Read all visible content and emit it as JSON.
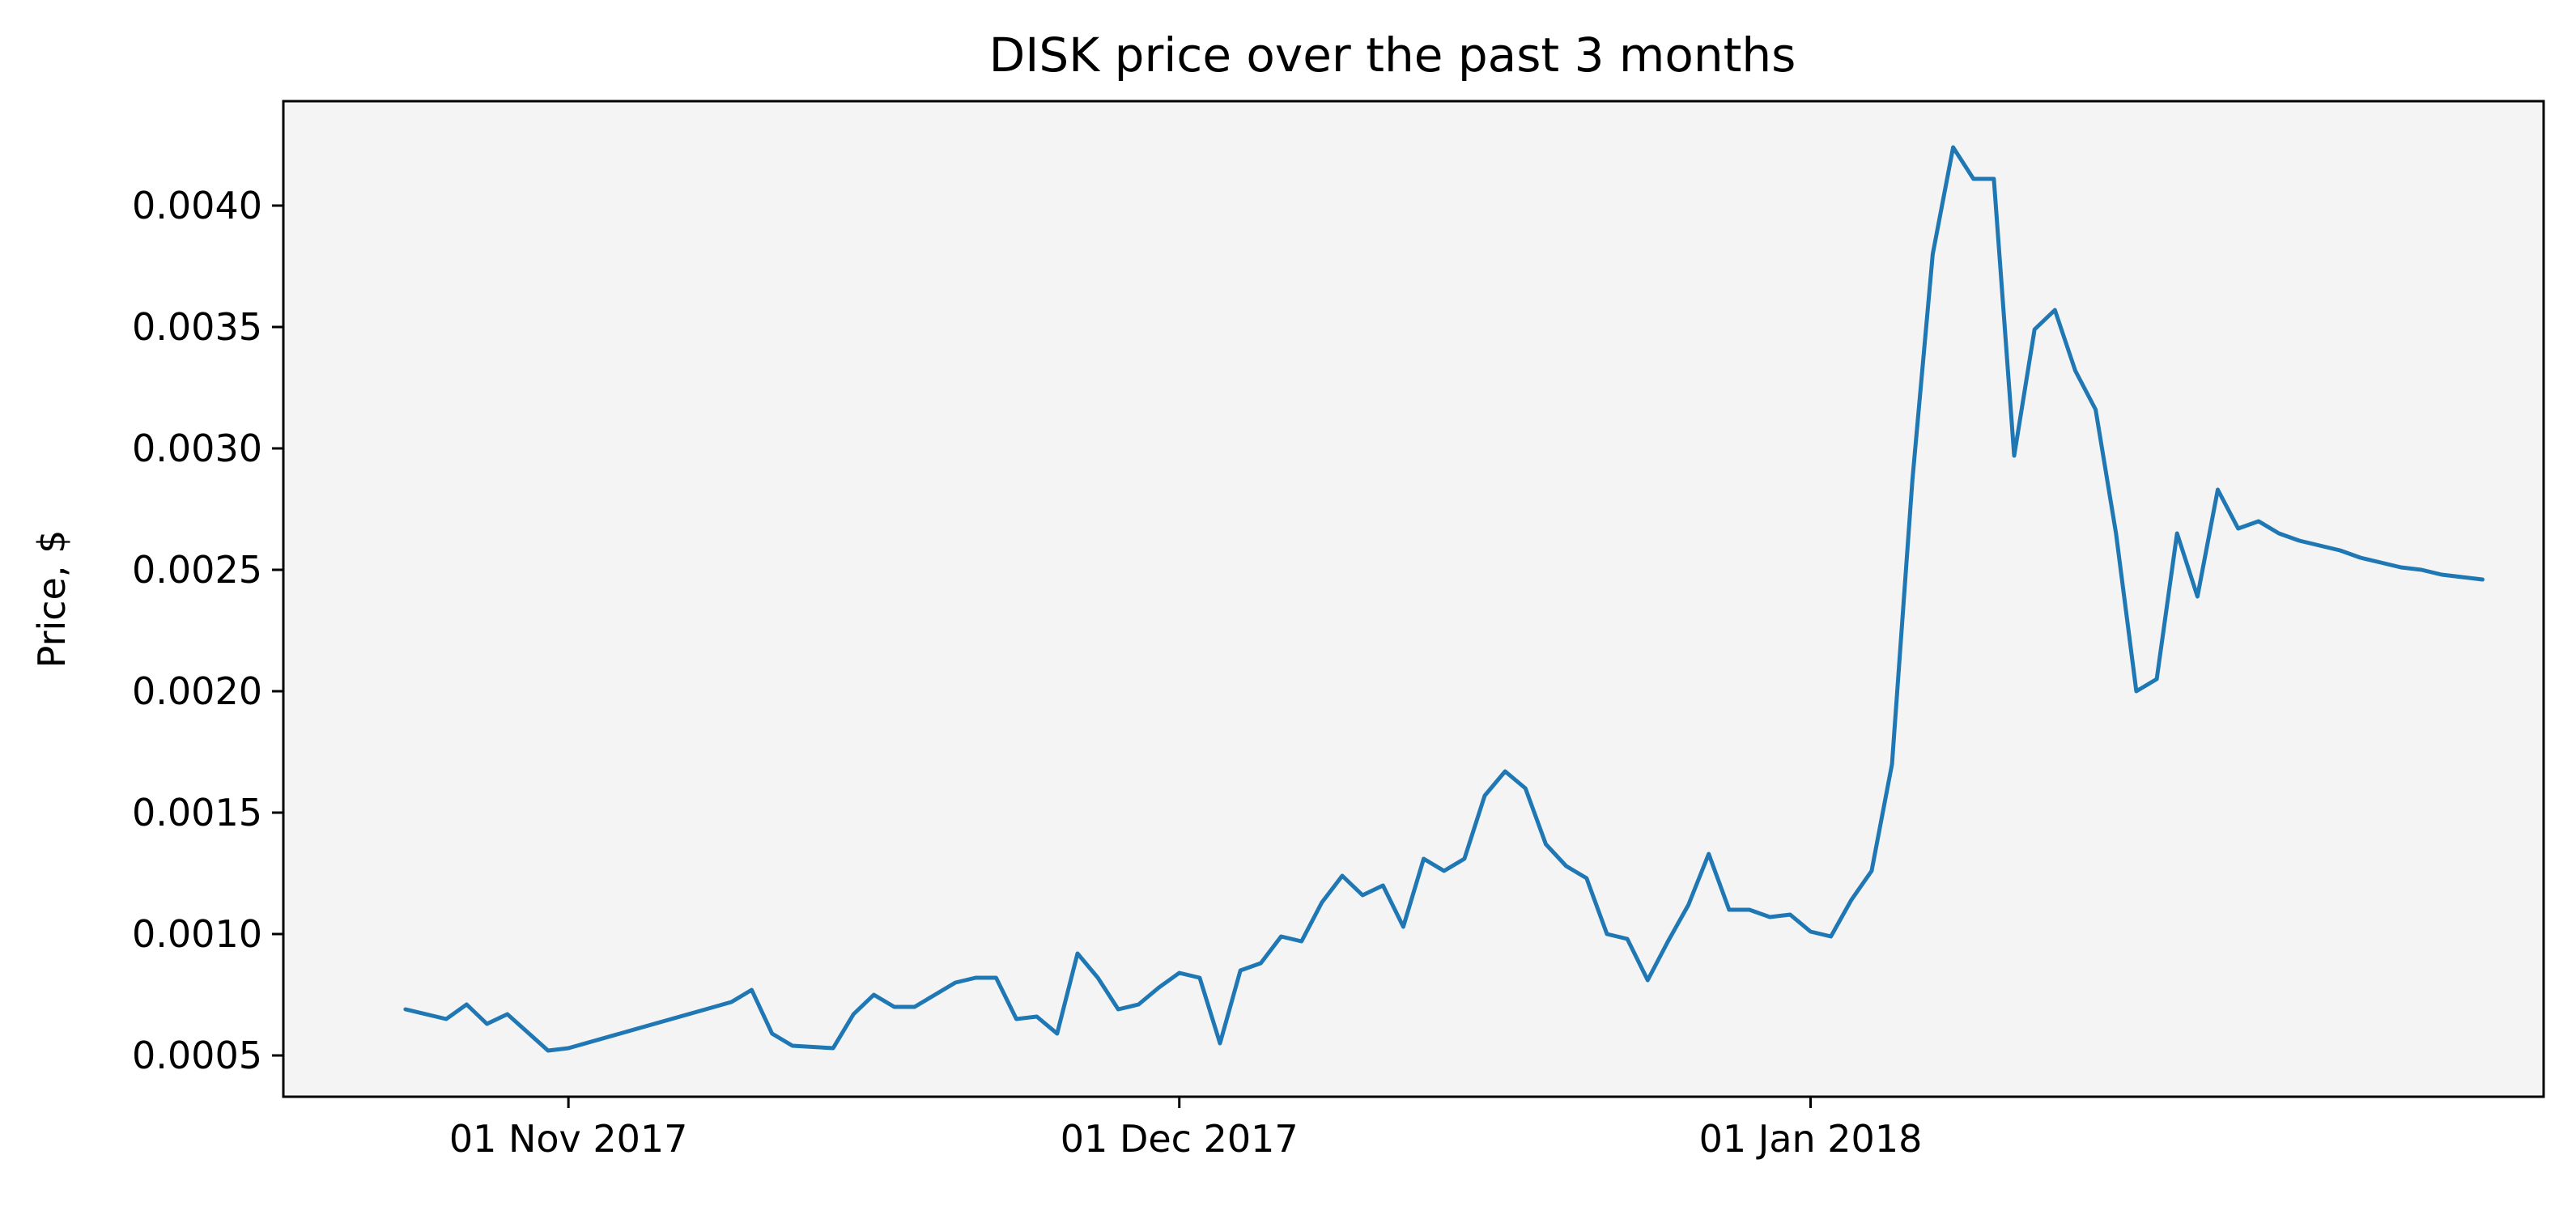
{
  "chart_data": {
    "type": "line",
    "title": "DISK price over the past 3 months",
    "xlabel": "",
    "ylabel": "Price, $",
    "x_range": [
      "2017-10-18",
      "2018-02-06"
    ],
    "ylim": [
      0.00033,
      0.00443
    ],
    "grid": false,
    "legend": "none",
    "colors": {
      "line": "#1f77b4",
      "plot_bg": "#f4f4f4",
      "axes": "#000000"
    },
    "x_ticks": [
      {
        "date": "2017-11-01",
        "label": "01 Nov 2017"
      },
      {
        "date": "2017-12-01",
        "label": "01 Dec 2017"
      },
      {
        "date": "2018-01-01",
        "label": "01 Jan 2018"
      }
    ],
    "y_ticks": [
      {
        "value": 0.0005,
        "label": "0.0005"
      },
      {
        "value": 0.001,
        "label": "0.0010"
      },
      {
        "value": 0.0015,
        "label": "0.0015"
      },
      {
        "value": 0.002,
        "label": "0.0020"
      },
      {
        "value": 0.0025,
        "label": "0.0025"
      },
      {
        "value": 0.003,
        "label": "0.0030"
      },
      {
        "value": 0.0035,
        "label": "0.0035"
      },
      {
        "value": 0.004,
        "label": "0.0040"
      }
    ],
    "series": [
      {
        "x": [
          "2017-10-24",
          "2017-10-26",
          "2017-10-27",
          "2017-10-28",
          "2017-10-29",
          "2017-10-31",
          "2017-11-01",
          "2017-11-09",
          "2017-11-10",
          "2017-11-11",
          "2017-11-12",
          "2017-11-14",
          "2017-11-15",
          "2017-11-16",
          "2017-11-17",
          "2017-11-18",
          "2017-11-19",
          "2017-11-20",
          "2017-11-21",
          "2017-11-22",
          "2017-11-23",
          "2017-11-24",
          "2017-11-25",
          "2017-11-26",
          "2017-11-27",
          "2017-11-28",
          "2017-11-29",
          "2017-11-30",
          "2017-12-01",
          "2017-12-02",
          "2017-12-03",
          "2017-12-04",
          "2017-12-05",
          "2017-12-06",
          "2017-12-07",
          "2017-12-08",
          "2017-12-09",
          "2017-12-10",
          "2017-12-11",
          "2017-12-12",
          "2017-12-13",
          "2017-12-14",
          "2017-12-15",
          "2017-12-16",
          "2017-12-17",
          "2017-12-18",
          "2017-12-19",
          "2017-12-20",
          "2017-12-21",
          "2017-12-22",
          "2017-12-23",
          "2017-12-24",
          "2017-12-25",
          "2017-12-26",
          "2017-12-27",
          "2017-12-28",
          "2017-12-29",
          "2017-12-30",
          "2017-12-31",
          "2018-01-01",
          "2018-01-02",
          "2018-01-03",
          "2018-01-04",
          "2018-01-05",
          "2018-01-06",
          "2018-01-07",
          "2018-01-08",
          "2018-01-09",
          "2018-01-10",
          "2018-01-11",
          "2018-01-12",
          "2018-01-13",
          "2018-01-14",
          "2018-01-15",
          "2018-01-16",
          "2018-01-17",
          "2018-01-18",
          "2018-01-19",
          "2018-01-20",
          "2018-01-21",
          "2018-01-22",
          "2018-01-23",
          "2018-01-24",
          "2018-01-25",
          "2018-01-26",
          "2018-01-27",
          "2018-01-28",
          "2018-01-29",
          "2018-01-30",
          "2018-01-31",
          "2018-02-01",
          "2018-02-02",
          "2018-02-03"
        ],
        "y": [
          0.00069,
          0.00065,
          0.00071,
          0.00063,
          0.00067,
          0.00052,
          0.00053,
          0.00072,
          0.00077,
          0.00059,
          0.00054,
          0.00053,
          0.00067,
          0.00075,
          0.0007,
          0.0007,
          0.00075,
          0.0008,
          0.00082,
          0.00082,
          0.00065,
          0.00066,
          0.00059,
          0.00092,
          0.00082,
          0.00069,
          0.00071,
          0.00078,
          0.00084,
          0.00082,
          0.00055,
          0.00085,
          0.00088,
          0.00099,
          0.00097,
          0.00113,
          0.00124,
          0.00116,
          0.0012,
          0.00103,
          0.00131,
          0.00126,
          0.00131,
          0.00157,
          0.00167,
          0.0016,
          0.00137,
          0.00128,
          0.00123,
          0.001,
          0.00098,
          0.00081,
          0.00097,
          0.00112,
          0.00133,
          0.0011,
          0.0011,
          0.00107,
          0.00108,
          0.00101,
          0.00099,
          0.00114,
          0.00126,
          0.0017,
          0.00287,
          0.0038,
          0.00424,
          0.00411,
          0.00411,
          0.00297,
          0.00349,
          0.00357,
          0.00332,
          0.00316,
          0.00265,
          0.002,
          0.00205,
          0.00265,
          0.00239,
          0.00283,
          0.00267,
          0.0027,
          0.00265,
          0.00262,
          0.0026,
          0.00258,
          0.00255,
          0.00253,
          0.00251,
          0.0025,
          0.00248,
          0.00247,
          0.00246
        ]
      }
    ]
  }
}
